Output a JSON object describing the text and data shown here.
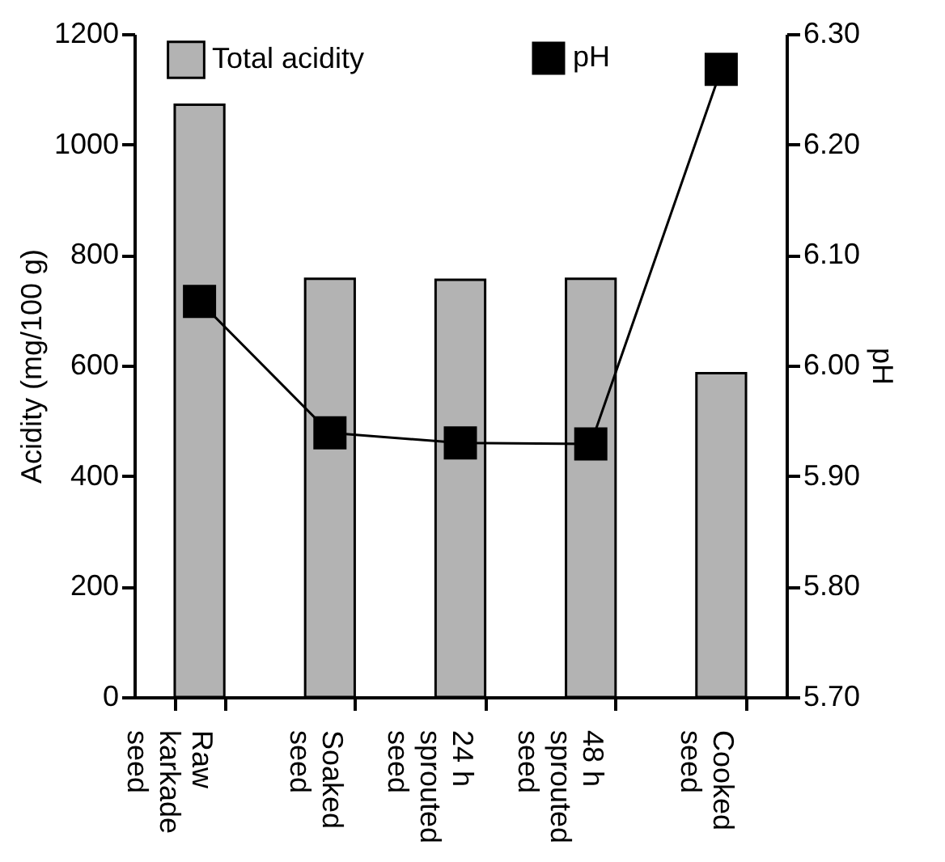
{
  "chart_data": {
    "type": "bar",
    "categories": [
      "Raw\nkarkade\nseed",
      "Soaked\nseed",
      "24 h\nsprouted\nseed",
      "48  h\nsprouted\nseed",
      "Cooked\nseed"
    ],
    "ylabel": "Acidity (mg/100 g)",
    "y2label": "pH",
    "ylim": [
      0,
      1200
    ],
    "yticks": [
      0,
      200,
      400,
      600,
      800,
      1000,
      1200
    ],
    "y2lim": [
      5.7,
      6.3
    ],
    "y2ticks": [
      {
        "value": 5.7,
        "label": "5.70"
      },
      {
        "value": 5.8,
        "label": "5.80"
      },
      {
        "value": 5.9,
        "label": "5.90"
      },
      {
        "value": 6.0,
        "label": "6.00"
      },
      {
        "value": 6.1,
        "label": "6.10"
      },
      {
        "value": 6.2,
        "label": "6.20"
      },
      {
        "value": 6.3,
        "label": "6.30"
      }
    ],
    "series": [
      {
        "name": "Total acidity",
        "color": "#b3b3b3",
        "values": [
          1072,
          757,
          755,
          757,
          586
        ]
      },
      {
        "name": "pH",
        "type": "line",
        "axis": "y2",
        "marker": "square",
        "color": "#000000",
        "values": [
          6.058,
          5.939,
          5.93,
          5.929,
          6.268
        ]
      }
    ],
    "legend": "top",
    "grid": false
  }
}
